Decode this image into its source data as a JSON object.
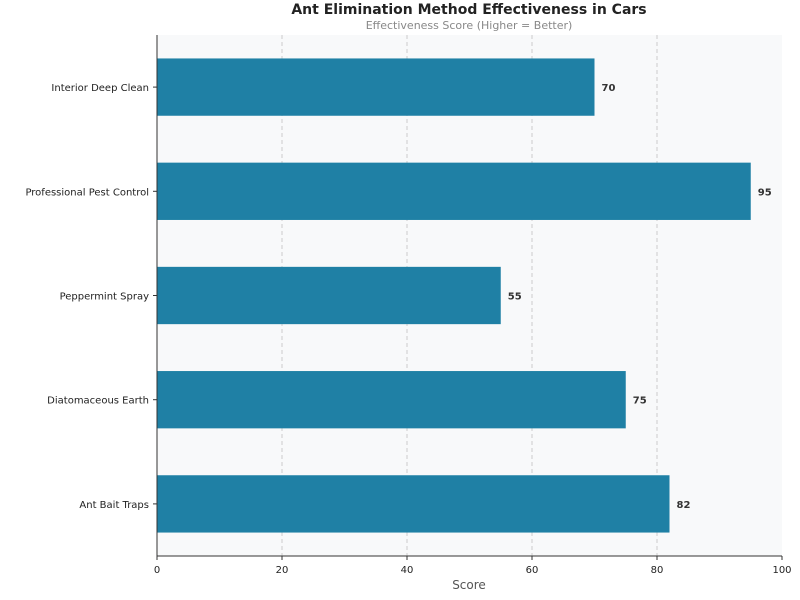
{
  "chart_data": {
    "type": "bar",
    "orientation": "horizontal",
    "title": "Ant Elimination Method Effectiveness in Cars",
    "subtitle": "Effectiveness Score (Higher = Better)",
    "xlabel": "Score",
    "ylabel": "",
    "xlim": [
      0,
      100
    ],
    "xticks": [
      "0",
      "20",
      "40",
      "60",
      "80",
      "100"
    ],
    "grid": "x, dashed",
    "categories": [
      "Ant Bait Traps",
      "Diatomaceous Earth",
      "Peppermint Spray",
      "Professional Pest Control",
      "Interior Deep Clean"
    ],
    "values": [
      82,
      75,
      55,
      95,
      70
    ],
    "bar_color": "#1f80a5",
    "plot_background": "#f8f9fa"
  }
}
